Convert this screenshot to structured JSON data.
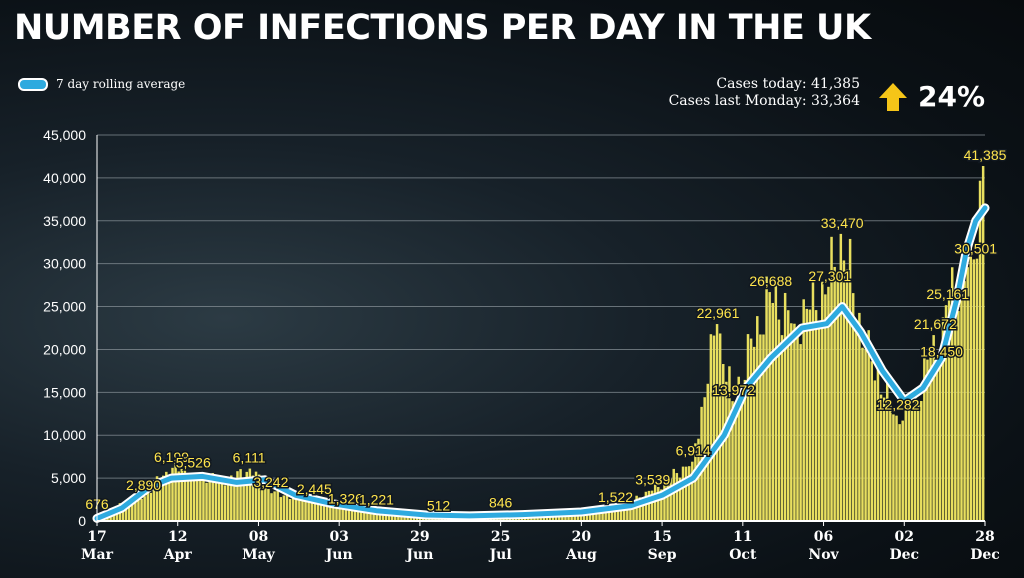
{
  "header": {
    "title": "NUMBER OF INFECTIONS PER DAY IN THE UK",
    "legend_label": "7 day rolling average",
    "cases_today": "Cases today: 41,385",
    "cases_last_monday": "Cases last Monday: 33,364",
    "change": "24%",
    "arrow_icon": "arrow-up-icon"
  },
  "colors": {
    "bars": "#e8df5f",
    "line": "#2eaadf",
    "line_outline": "#ffffff",
    "labels": "#ffe54d",
    "grid": "#8a949a"
  },
  "chart_data": {
    "type": "bar",
    "title": "NUMBER OF INFECTIONS PER DAY IN THE UK",
    "xlabel": "",
    "ylabel": "",
    "ylim": [
      0,
      45000
    ],
    "yticks": [
      "0",
      "5,000",
      "10,000",
      "15,000",
      "20,000",
      "25,000",
      "30,000",
      "35,000",
      "40,000",
      "45,000"
    ],
    "x_ticks": [
      {
        "date": "2020-03-17",
        "day": "17",
        "month": "Mar"
      },
      {
        "date": "2020-04-12",
        "day": "12",
        "month": "Apr"
      },
      {
        "date": "2020-05-08",
        "day": "08",
        "month": "May"
      },
      {
        "date": "2020-06-03",
        "day": "03",
        "month": "Jun"
      },
      {
        "date": "2020-06-29",
        "day": "29",
        "month": "Jun"
      },
      {
        "date": "2020-07-25",
        "day": "25",
        "month": "Jul"
      },
      {
        "date": "2020-08-20",
        "day": "20",
        "month": "Aug"
      },
      {
        "date": "2020-09-15",
        "day": "15",
        "month": "Sep"
      },
      {
        "date": "2020-10-11",
        "day": "11",
        "month": "Oct"
      },
      {
        "date": "2020-11-06",
        "day": "06",
        "month": "Nov"
      },
      {
        "date": "2020-12-02",
        "day": "02",
        "month": "Dec"
      },
      {
        "date": "2020-12-28",
        "day": "28",
        "month": "Dec"
      }
    ],
    "daily_cases_anchors": [
      {
        "date": "2020-03-17",
        "value": 676
      },
      {
        "date": "2020-03-25",
        "value": 2000
      },
      {
        "date": "2020-04-01",
        "value": 2890
      },
      {
        "date": "2020-04-06",
        "value": 5000
      },
      {
        "date": "2020-04-10",
        "value": 6199
      },
      {
        "date": "2020-04-17",
        "value": 5526
      },
      {
        "date": "2020-04-28",
        "value": 4800
      },
      {
        "date": "2020-05-05",
        "value": 6111
      },
      {
        "date": "2020-05-12",
        "value": 3242
      },
      {
        "date": "2020-05-26",
        "value": 2445
      },
      {
        "date": "2020-06-05",
        "value": 1326
      },
      {
        "date": "2020-06-15",
        "value": 1221
      },
      {
        "date": "2020-07-05",
        "value": 512
      },
      {
        "date": "2020-07-25",
        "value": 846
      },
      {
        "date": "2020-08-10",
        "value": 1000
      },
      {
        "date": "2020-08-31",
        "value": 1522
      },
      {
        "date": "2020-09-12",
        "value": 3539
      },
      {
        "date": "2020-09-25",
        "value": 6914
      },
      {
        "date": "2020-10-03",
        "value": 22961
      },
      {
        "date": "2020-10-08",
        "value": 13972
      },
      {
        "date": "2020-10-20",
        "value": 26688
      },
      {
        "date": "2020-10-28",
        "value": 23000
      },
      {
        "date": "2020-11-08",
        "value": 27301
      },
      {
        "date": "2020-11-12",
        "value": 33470
      },
      {
        "date": "2020-11-20",
        "value": 20000
      },
      {
        "date": "2020-11-30",
        "value": 12282
      },
      {
        "date": "2020-12-07",
        "value": 14000
      },
      {
        "date": "2020-12-12",
        "value": 21672
      },
      {
        "date": "2020-12-14",
        "value": 18450
      },
      {
        "date": "2020-12-16",
        "value": 25161
      },
      {
        "date": "2020-12-25",
        "value": 30501
      },
      {
        "date": "2020-12-28",
        "value": 41385
      }
    ],
    "rolling_average": [
      {
        "date": "2020-03-17",
        "value": 300
      },
      {
        "date": "2020-03-25",
        "value": 1500
      },
      {
        "date": "2020-04-03",
        "value": 4000
      },
      {
        "date": "2020-04-10",
        "value": 5000
      },
      {
        "date": "2020-04-20",
        "value": 5200
      },
      {
        "date": "2020-05-01",
        "value": 4500
      },
      {
        "date": "2020-05-10",
        "value": 4800
      },
      {
        "date": "2020-05-20",
        "value": 3000
      },
      {
        "date": "2020-06-01",
        "value": 2000
      },
      {
        "date": "2020-06-15",
        "value": 1200
      },
      {
        "date": "2020-07-01",
        "value": 700
      },
      {
        "date": "2020-07-15",
        "value": 600
      },
      {
        "date": "2020-08-01",
        "value": 750
      },
      {
        "date": "2020-08-20",
        "value": 1050
      },
      {
        "date": "2020-09-05",
        "value": 1800
      },
      {
        "date": "2020-09-15",
        "value": 3000
      },
      {
        "date": "2020-09-25",
        "value": 5000
      },
      {
        "date": "2020-10-05",
        "value": 10000
      },
      {
        "date": "2020-10-12",
        "value": 15500
      },
      {
        "date": "2020-10-20",
        "value": 19000
      },
      {
        "date": "2020-10-30",
        "value": 22500
      },
      {
        "date": "2020-11-07",
        "value": 23000
      },
      {
        "date": "2020-11-12",
        "value": 25000
      },
      {
        "date": "2020-11-18",
        "value": 22000
      },
      {
        "date": "2020-11-25",
        "value": 17500
      },
      {
        "date": "2020-12-02",
        "value": 14000
      },
      {
        "date": "2020-12-08",
        "value": 15500
      },
      {
        "date": "2020-12-14",
        "value": 19000
      },
      {
        "date": "2020-12-19",
        "value": 26000
      },
      {
        "date": "2020-12-22",
        "value": 31500
      },
      {
        "date": "2020-12-25",
        "value": 35000
      },
      {
        "date": "2020-12-28",
        "value": 36500
      }
    ],
    "data_labels": [
      {
        "date": "2020-03-17",
        "value": 676,
        "text": "676"
      },
      {
        "date": "2020-04-01",
        "value": 2890,
        "text": "2,890"
      },
      {
        "date": "2020-04-10",
        "value": 6199,
        "text": "6,199"
      },
      {
        "date": "2020-04-17",
        "value": 5526,
        "text": "5,526"
      },
      {
        "date": "2020-05-05",
        "value": 6111,
        "text": "6,111"
      },
      {
        "date": "2020-05-12",
        "value": 3242,
        "text": "3,242"
      },
      {
        "date": "2020-05-26",
        "value": 2445,
        "text": "2,445"
      },
      {
        "date": "2020-06-05",
        "value": 1326,
        "text": "1,326"
      },
      {
        "date": "2020-06-15",
        "value": 1221,
        "text": "1,221"
      },
      {
        "date": "2020-07-05",
        "value": 512,
        "text": "512"
      },
      {
        "date": "2020-07-25",
        "value": 846,
        "text": "846"
      },
      {
        "date": "2020-08-31",
        "value": 1522,
        "text": "1,522"
      },
      {
        "date": "2020-09-12",
        "value": 3539,
        "text": "3,539"
      },
      {
        "date": "2020-09-25",
        "value": 6914,
        "text": "6,914"
      },
      {
        "date": "2020-10-03",
        "value": 22961,
        "text": "22,961"
      },
      {
        "date": "2020-10-08",
        "value": 13972,
        "text": "13,972"
      },
      {
        "date": "2020-10-20",
        "value": 26688,
        "text": "26,688"
      },
      {
        "date": "2020-11-08",
        "value": 27301,
        "text": "27,301"
      },
      {
        "date": "2020-11-12",
        "value": 33470,
        "text": "33,470"
      },
      {
        "date": "2020-11-30",
        "value": 12282,
        "text": "12,282"
      },
      {
        "date": "2020-12-12",
        "value": 21672,
        "text": "21,672"
      },
      {
        "date": "2020-12-14",
        "value": 18450,
        "text": "18,450"
      },
      {
        "date": "2020-12-16",
        "value": 25161,
        "text": "25,161"
      },
      {
        "date": "2020-12-25",
        "value": 30501,
        "text": "30,501"
      },
      {
        "date": "2020-12-28",
        "value": 41385,
        "text": "41,385"
      }
    ],
    "grid": true,
    "legend": "top-left"
  }
}
